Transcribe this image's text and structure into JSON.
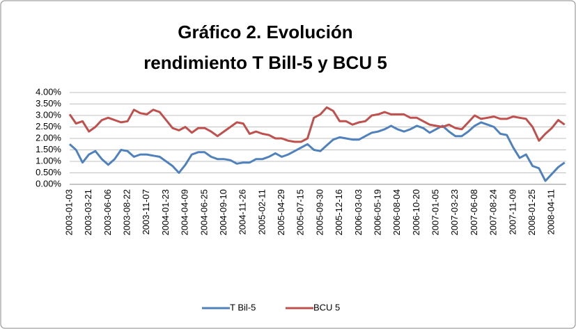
{
  "chart_data": {
    "type": "line",
    "title": [
      "Gráfico 2. Evolución",
      "rendimiento T Bill-5 y BCU 5"
    ],
    "categories": [
      "2003-01-03",
      null,
      null,
      "2003-03-21",
      null,
      null,
      "2003-06-06",
      null,
      null,
      "2003-08-22",
      null,
      null,
      "2003-11-07",
      null,
      null,
      "2004-01-23",
      null,
      null,
      "2004-04-09",
      null,
      null,
      "2004-06-25",
      null,
      null,
      "2004-09-10",
      null,
      null,
      "2004-11-26",
      null,
      null,
      "2005-02-11",
      null,
      null,
      "2005-04-29",
      null,
      null,
      "2005-07-15",
      null,
      null,
      "2005-09-30",
      null,
      null,
      "2005-12-16",
      null,
      null,
      "2006-03-03",
      null,
      null,
      "2006-05-19",
      null,
      null,
      "2006-08-04",
      null,
      null,
      "2006-10-20",
      null,
      null,
      "2007-01-05",
      null,
      null,
      "2007-03-23",
      null,
      null,
      "2007-06-08",
      null,
      null,
      "2007-08-24",
      null,
      null,
      "2007-11-09",
      null,
      null,
      "2008-01-25",
      null,
      null,
      "2008-04-11",
      null,
      null
    ],
    "series": [
      {
        "name": "T Bil-5",
        "color": "#4f81bd",
        "values": [
          1.75,
          1.5,
          0.95,
          1.3,
          1.45,
          1.1,
          0.85,
          1.1,
          1.5,
          1.45,
          1.2,
          1.3,
          1.3,
          1.25,
          1.2,
          1.0,
          0.8,
          0.5,
          0.85,
          1.3,
          1.4,
          1.4,
          1.2,
          1.1,
          1.1,
          1.05,
          0.9,
          0.95,
          0.95,
          1.1,
          1.1,
          1.2,
          1.35,
          1.2,
          1.3,
          1.45,
          1.6,
          1.75,
          1.5,
          1.45,
          1.7,
          1.95,
          2.05,
          2.0,
          1.95,
          1.95,
          2.1,
          2.25,
          2.3,
          2.4,
          2.55,
          2.4,
          2.3,
          2.4,
          2.55,
          2.45,
          2.25,
          2.4,
          2.55,
          2.3,
          2.1,
          2.1,
          2.3,
          2.55,
          2.7,
          2.6,
          2.5,
          2.2,
          2.15,
          1.6,
          1.15,
          1.3,
          0.8,
          0.7,
          0.15,
          0.45,
          0.75,
          0.95
        ]
      },
      {
        "name": "BCU 5",
        "color": "#c0504d",
        "values": [
          3.05,
          2.65,
          2.75,
          2.3,
          2.5,
          2.8,
          2.9,
          2.8,
          2.7,
          2.75,
          3.25,
          3.1,
          3.05,
          3.25,
          3.15,
          2.8,
          2.45,
          2.35,
          2.5,
          2.25,
          2.45,
          2.45,
          2.3,
          2.1,
          2.3,
          2.5,
          2.7,
          2.65,
          2.2,
          2.3,
          2.2,
          2.15,
          2.0,
          2.0,
          1.9,
          1.85,
          1.85,
          2.0,
          2.9,
          3.05,
          3.35,
          3.2,
          2.75,
          2.75,
          2.6,
          2.7,
          2.75,
          3.0,
          3.05,
          3.15,
          3.05,
          3.05,
          3.05,
          2.9,
          2.9,
          2.75,
          2.6,
          2.55,
          2.5,
          2.6,
          2.45,
          2.4,
          2.7,
          3.0,
          2.85,
          2.9,
          2.95,
          2.85,
          2.85,
          2.95,
          2.9,
          2.85,
          2.5,
          1.9,
          2.2,
          2.45,
          2.8,
          2.6
        ]
      }
    ],
    "ylim": [
      0,
      4
    ],
    "yticks": [
      {
        "value": 0,
        "label": "0.00%"
      },
      {
        "value": 0.5,
        "label": "0.50%"
      },
      {
        "value": 1,
        "label": "1.00%"
      },
      {
        "value": 1.5,
        "label": "1.50%"
      },
      {
        "value": 2,
        "label": "2.00%"
      },
      {
        "value": 2.5,
        "label": "2.50%"
      },
      {
        "value": 3,
        "label": "3.00%"
      },
      {
        "value": 3.5,
        "label": "3.50%"
      },
      {
        "value": 4,
        "label": "4.00%"
      }
    ],
    "grid": true,
    "legend": "bottom"
  }
}
